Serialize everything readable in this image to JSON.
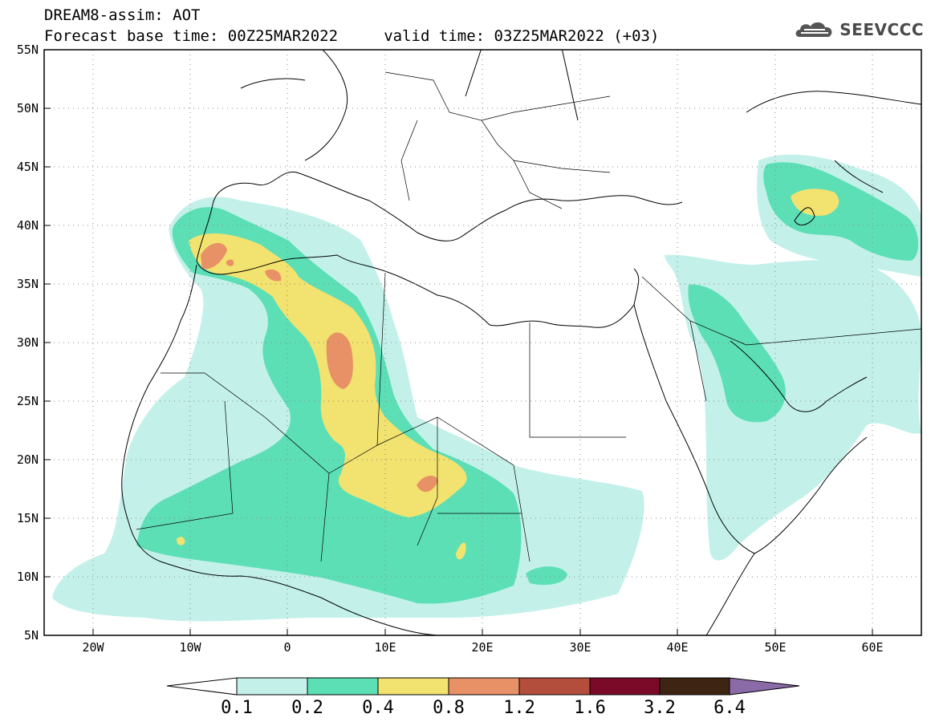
{
  "header": {
    "title_line1": "DREAM8-assim: AOT",
    "title_line2": "Forecast base time: 00Z25MAR2022     valid time: 03Z25MAR2022 (+03)"
  },
  "logo": {
    "text": "SEEVCCC",
    "icon": "cloud-icon"
  },
  "map": {
    "lat_labels": [
      "55N",
      "50N",
      "45N",
      "40N",
      "35N",
      "30N",
      "25N",
      "20N",
      "15N",
      "10N",
      "5N"
    ],
    "lon_labels": [
      "20W",
      "10W",
      "0",
      "10E",
      "20E",
      "30E",
      "40E",
      "50E",
      "60E"
    ],
    "lon_range": [
      -25,
      65
    ],
    "lat_range": [
      5,
      55
    ],
    "grid": "dotted"
  },
  "colorbar": {
    "labels": [
      "0.1",
      "0.2",
      "0.4",
      "0.8",
      "1.2",
      "1.6",
      "3.2",
      "6.4"
    ],
    "colors": [
      "#c3f1ea",
      "#5ddfb6",
      "#f2e26f",
      "#e89166",
      "#b34e3c",
      "#7a0a28",
      "#3d2413",
      "#8b6aa8"
    ],
    "below_color": "#ffffff"
  }
}
